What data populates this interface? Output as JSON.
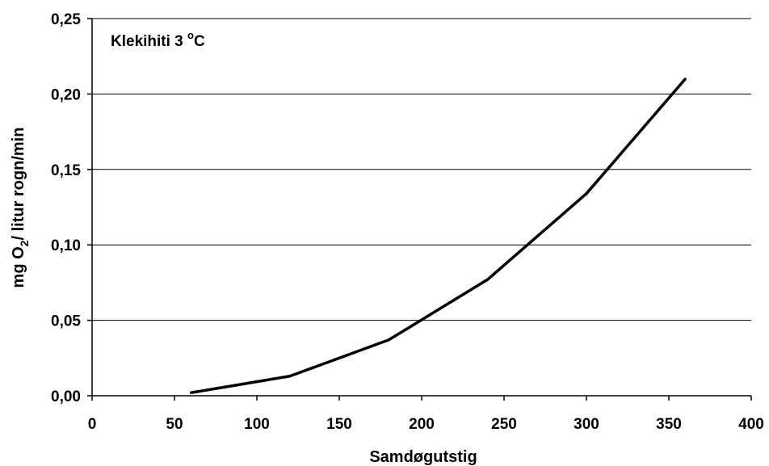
{
  "chart_data": {
    "type": "line",
    "title": "",
    "annotation": {
      "text": "Klekihiti 3 ",
      "superscript": "o",
      "suffix": "C"
    },
    "xlabel": "Samdøgutstig",
    "ylabel": {
      "prefix": "mg O",
      "subscript": "2",
      "suffix": "/ litur rogn/min"
    },
    "xlim": [
      0,
      400
    ],
    "ylim": [
      0,
      0.25
    ],
    "x_ticks": [
      0,
      50,
      100,
      150,
      200,
      250,
      300,
      350,
      400
    ],
    "x_tick_labels": [
      "0",
      "50",
      "100",
      "150",
      "200",
      "250",
      "300",
      "350",
      "400"
    ],
    "y_ticks": [
      0,
      0.05,
      0.1,
      0.15,
      0.2,
      0.25
    ],
    "y_tick_labels": [
      "0,00",
      "0,05",
      "0,10",
      "0,15",
      "0,20",
      "0,25"
    ],
    "grid": "horizontal",
    "series": [
      {
        "x": [
          60,
          120,
          180,
          240,
          300,
          360
        ],
        "y": [
          0.002,
          0.013,
          0.037,
          0.077,
          0.134,
          0.21
        ],
        "color": "#000000"
      }
    ]
  }
}
